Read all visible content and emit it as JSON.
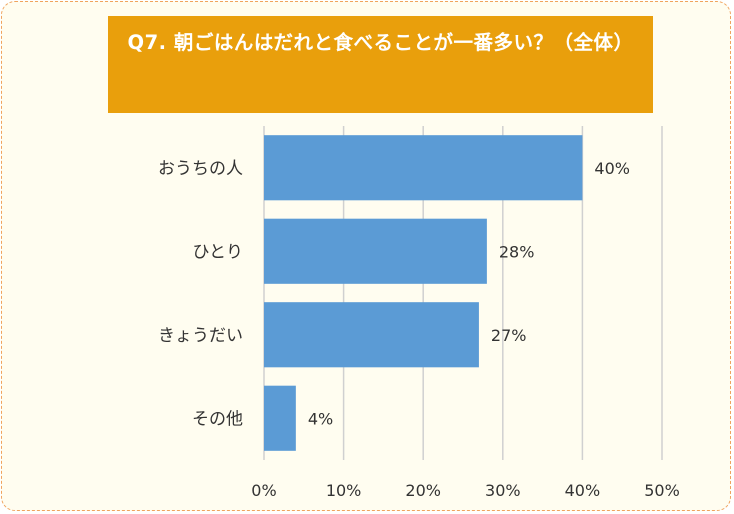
{
  "title": "Q7. 朝ごはんはだれと食べることが一番多い？（全体）",
  "chart_data": {
    "type": "bar",
    "orientation": "horizontal",
    "title": "Q7. 朝ごはんはだれと食べることが一番多い？（全体）",
    "categories": [
      "おうちの人",
      "ひとり",
      "きょうだい",
      "その他"
    ],
    "values": [
      40,
      28,
      27,
      4
    ],
    "data_labels": [
      "40%",
      "28%",
      "27%",
      "4%"
    ],
    "xlim": [
      0,
      50
    ],
    "x_ticks": [
      0,
      10,
      20,
      30,
      40,
      50
    ],
    "x_tick_labels": [
      "0%",
      "10%",
      "20%",
      "30%",
      "40%",
      "50%"
    ],
    "grid": true,
    "bar_color": "#5b9bd5",
    "title_bg_color": "#e99f0c",
    "border_color": "#f0a35e",
    "background_color": "#fffdf0"
  }
}
